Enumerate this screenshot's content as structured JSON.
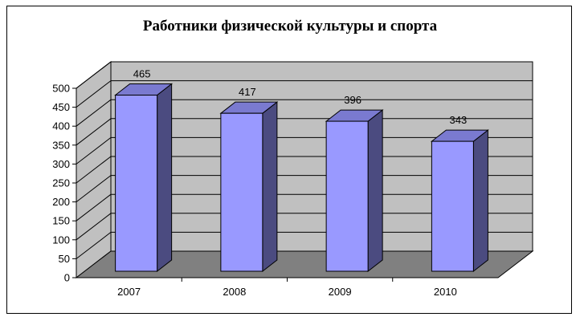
{
  "chart_data": {
    "type": "bar",
    "title": "Работники физической культуры и спорта",
    "categories": [
      "2007",
      "2008",
      "2009",
      "2010"
    ],
    "values": [
      465,
      417,
      396,
      343
    ],
    "data_labels": [
      "465",
      "417",
      "396",
      "343"
    ],
    "y_ticks": [
      "0",
      "50",
      "100",
      "150",
      "200",
      "250",
      "300",
      "350",
      "400",
      "450",
      "500"
    ],
    "ylim": [
      0,
      500
    ],
    "xlabel": "",
    "ylabel": "",
    "grid": true,
    "legend": "none",
    "style": "3d",
    "colors": {
      "bar_front": "#9999ff",
      "bar_side": "#4b4b80",
      "bar_top": "#7a7ad0",
      "wall": "#c0c0c0",
      "floor": "#808080"
    }
  }
}
